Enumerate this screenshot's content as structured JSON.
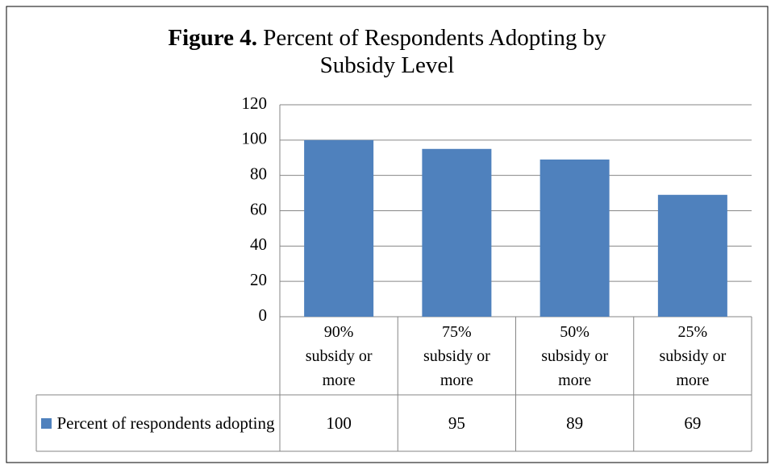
{
  "chart_data": {
    "type": "bar",
    "title_label": "Figure 4.",
    "title": "Percent of Respondents Adopting by Subsidy Level",
    "categories": [
      "90% subsidy or more",
      "75% subsidy or more",
      "50% subsidy or more",
      "25% subsidy or more"
    ],
    "series": [
      {
        "name": "Percent of respondents adopting",
        "color": "#4f81bd",
        "values": [
          100,
          95,
          89,
          69
        ]
      }
    ],
    "ylim": [
      0,
      120
    ],
    "yticks": [
      0,
      20,
      40,
      60,
      80,
      100,
      120
    ],
    "grid": true,
    "legend": "data-table"
  }
}
